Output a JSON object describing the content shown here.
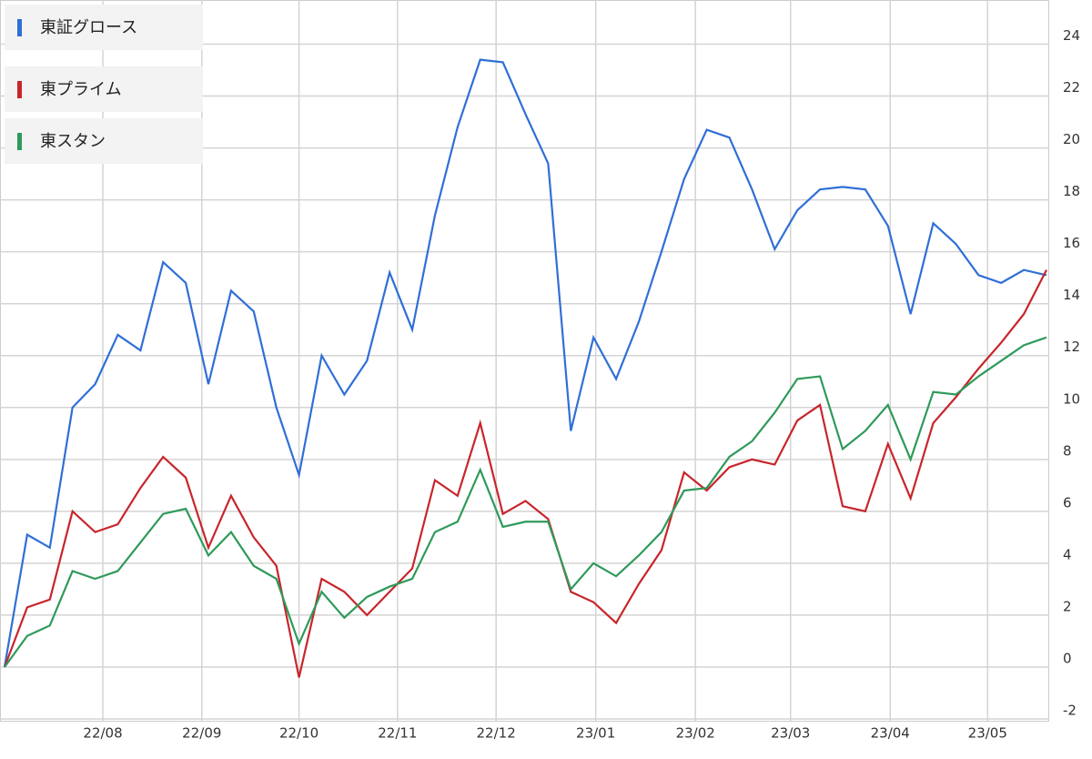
{
  "chart_data": {
    "type": "line",
    "x": [
      0,
      1,
      2,
      3,
      4,
      5,
      6,
      7,
      8,
      9,
      10,
      11,
      12,
      13,
      14,
      15,
      16,
      17,
      18,
      19,
      20,
      21,
      22,
      23,
      24,
      25,
      26,
      27,
      28,
      29,
      30,
      31,
      32,
      33,
      34,
      35,
      36,
      37,
      38,
      39,
      40,
      41,
      42,
      43,
      44,
      45,
      46
    ],
    "xlim": [
      0,
      46
    ],
    "xticks": [
      {
        "value": 4.34,
        "label": "22/08"
      },
      {
        "value": 8.71,
        "label": "22/09"
      },
      {
        "value": 13.0,
        "label": "22/10"
      },
      {
        "value": 17.35,
        "label": "22/11"
      },
      {
        "value": 21.7,
        "label": "22/12"
      },
      {
        "value": 26.1,
        "label": "23/01"
      },
      {
        "value": 30.5,
        "label": "23/02"
      },
      {
        "value": 34.7,
        "label": "23/03"
      },
      {
        "value": 39.1,
        "label": "23/04"
      },
      {
        "value": 43.4,
        "label": "23/05"
      }
    ],
    "ylim": [
      -2.35,
      25.7
    ],
    "yticks": [
      -2,
      0,
      2,
      4,
      6,
      8,
      10,
      12,
      14,
      16,
      18,
      20,
      22,
      24
    ],
    "grid": true,
    "legend": "top-left",
    "series": [
      {
        "name": "東証グロース",
        "color": "#2f6fd6",
        "values": [
          0,
          5.1,
          4.6,
          10.0,
          10.9,
          12.8,
          12.2,
          15.6,
          14.8,
          10.9,
          14.5,
          13.7,
          10.0,
          7.4,
          12.0,
          10.5,
          11.8,
          15.2,
          13.0,
          17.4,
          20.8,
          23.4,
          23.3,
          21.3,
          19.4,
          9.1,
          12.7,
          11.1,
          13.3,
          16.0,
          18.8,
          20.7,
          20.4,
          18.4,
          16.1,
          17.6,
          18.4,
          18.5,
          18.4,
          17.0,
          13.6,
          17.1,
          16.3,
          15.1,
          14.8,
          15.3,
          15.1
        ]
      },
      {
        "name": "東プライム",
        "color": "#c8252b",
        "values": [
          0,
          2.3,
          2.6,
          6.0,
          5.2,
          5.5,
          6.9,
          8.1,
          7.3,
          4.6,
          6.6,
          5.0,
          3.9,
          -0.4,
          3.4,
          2.9,
          2.0,
          2.9,
          3.8,
          7.2,
          6.6,
          9.4,
          5.9,
          6.4,
          5.7,
          2.9,
          2.5,
          1.7,
          3.2,
          4.5,
          7.5,
          6.8,
          7.7,
          8.0,
          7.8,
          9.5,
          10.1,
          6.2,
          6.0,
          8.6,
          6.5,
          9.4,
          10.4,
          11.5,
          12.5,
          13.6,
          15.3
        ]
      },
      {
        "name": "東スタン",
        "color": "#2e9a5a",
        "values": [
          0,
          1.2,
          1.6,
          3.7,
          3.4,
          3.7,
          4.8,
          5.9,
          6.1,
          4.3,
          5.2,
          3.9,
          3.4,
          0.9,
          2.9,
          1.9,
          2.7,
          3.1,
          3.4,
          5.2,
          5.6,
          7.6,
          5.4,
          5.6,
          5.6,
          3.0,
          4.0,
          3.5,
          4.3,
          5.2,
          6.8,
          6.9,
          8.1,
          8.7,
          9.8,
          11.1,
          11.2,
          8.4,
          9.1,
          10.1,
          8.0,
          10.6,
          10.5,
          11.2,
          11.8,
          12.4,
          12.7
        ]
      }
    ]
  }
}
